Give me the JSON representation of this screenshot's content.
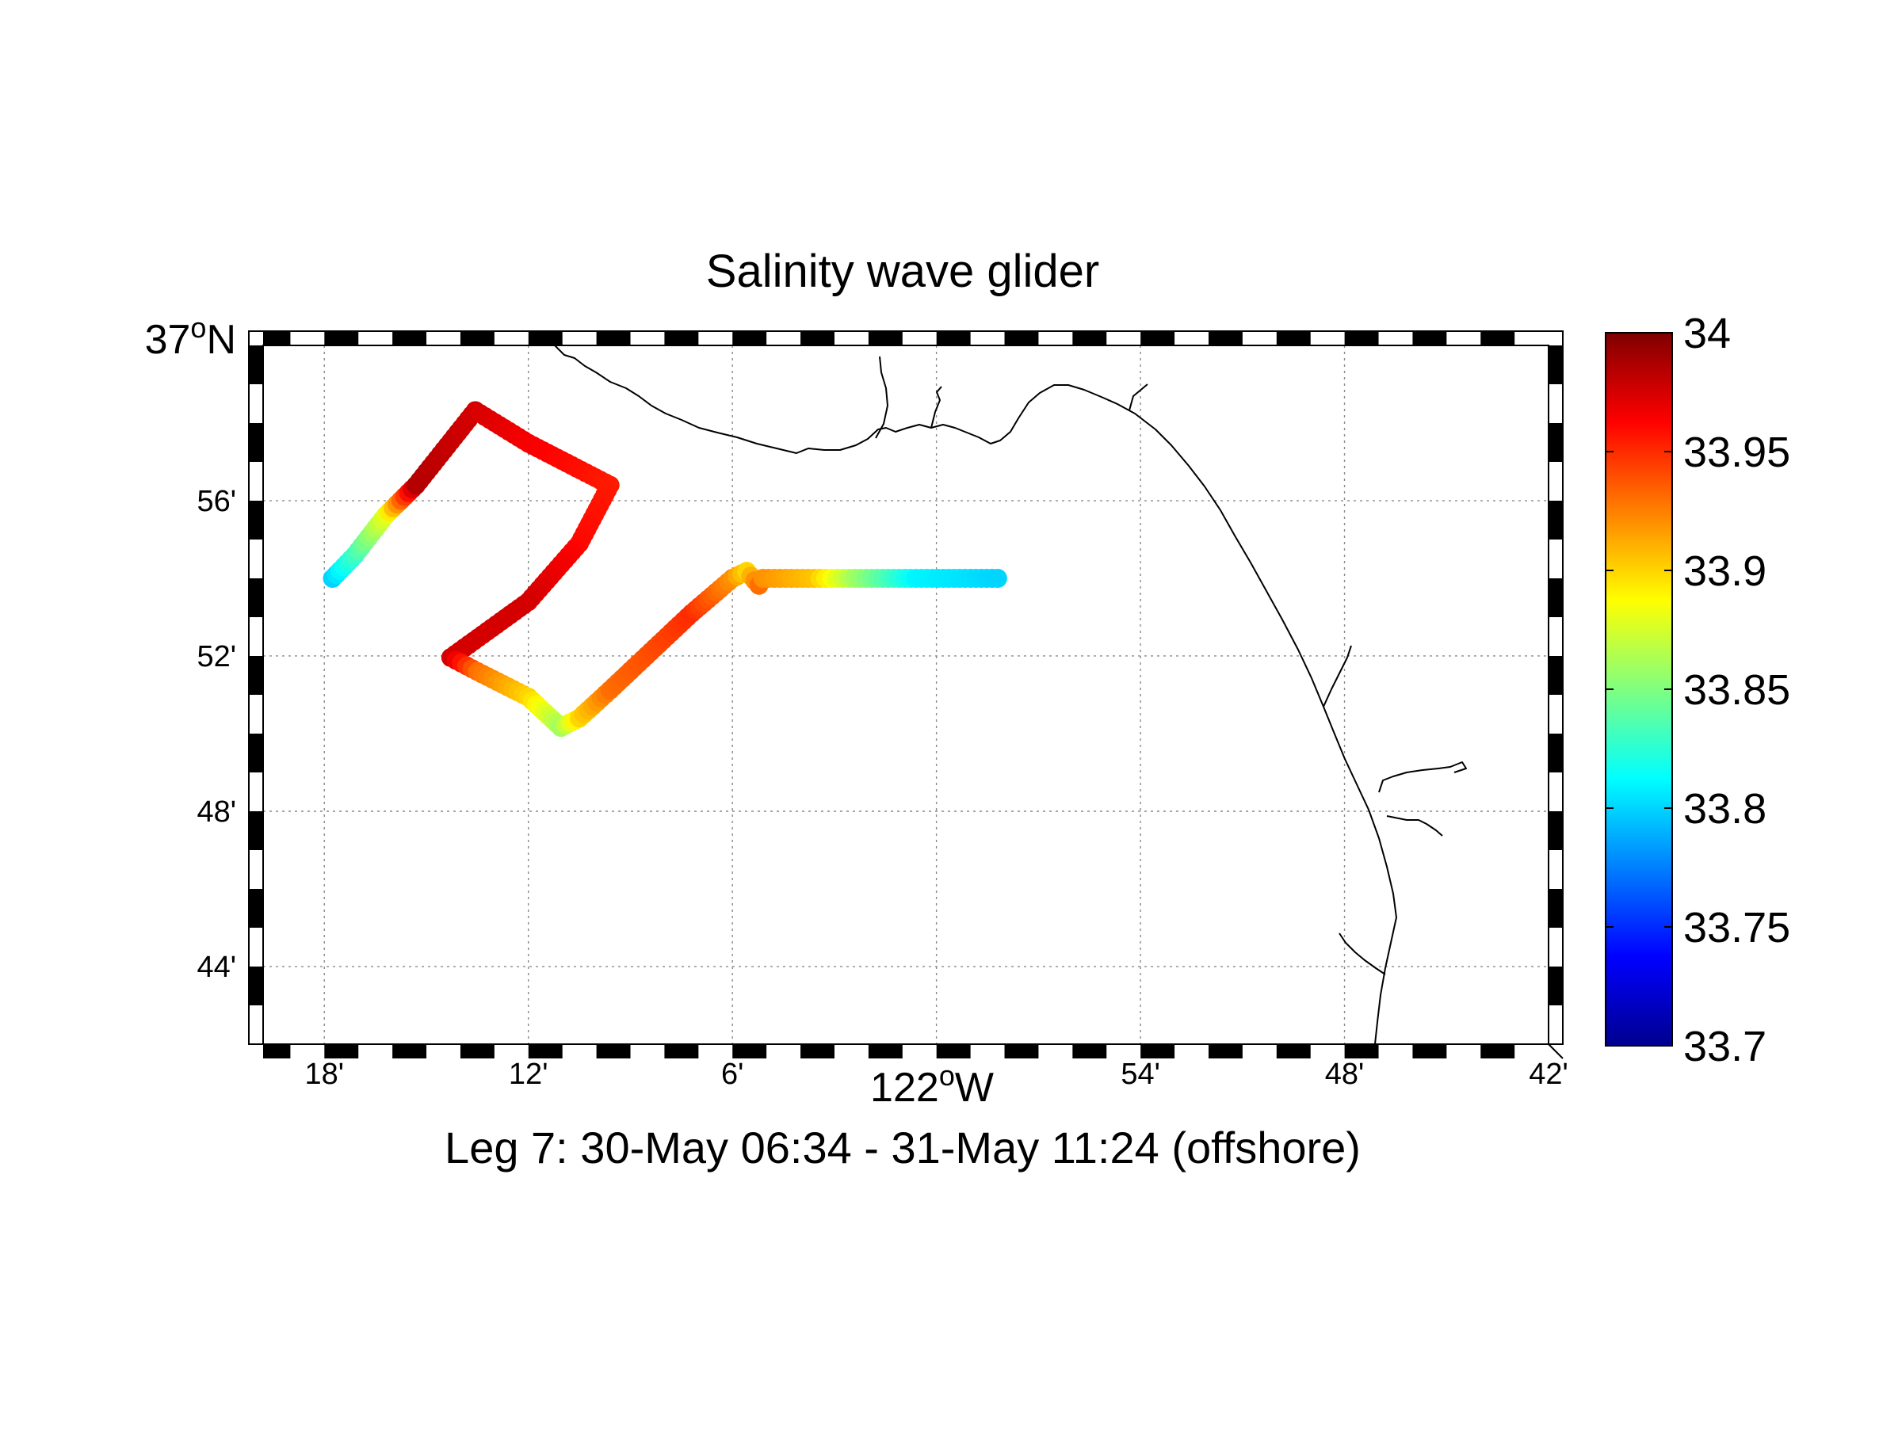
{
  "title": "Salinity wave glider",
  "caption": "Leg 7: 30-May 06:34 - 31-May 11:24 (offshore)",
  "x_axis": {
    "ticks": [
      {
        "lon": -122.3,
        "label": "18'"
      },
      {
        "lon": -122.2,
        "label": "12'"
      },
      {
        "lon": -122.1,
        "label": "6'"
      },
      {
        "lon": -121.9,
        "label": "54'"
      },
      {
        "lon": -121.8,
        "label": "48'"
      },
      {
        "lon": -121.7,
        "label": "42'"
      }
    ],
    "degree_label": {
      "lon": -122.0,
      "deg": "122",
      "sup": "o",
      "hemi": "W"
    },
    "range": [
      -122.33,
      -121.7
    ]
  },
  "y_axis": {
    "ticks": [
      {
        "lat": 36.9333,
        "label": "56'"
      },
      {
        "lat": 36.8667,
        "label": "52'"
      },
      {
        "lat": 36.8,
        "label": "48'"
      },
      {
        "lat": 36.7333,
        "label": "44'"
      }
    ],
    "degree_label": {
      "lat": 37.0,
      "deg": "37",
      "sup": "o",
      "hemi": "N"
    },
    "range": [
      36.7,
      37.0
    ]
  },
  "colorbar": {
    "min": 33.7,
    "max": 34.0,
    "ticks": [
      "34",
      "33.95",
      "33.9",
      "33.85",
      "33.8",
      "33.75",
      "33.7"
    ],
    "colormap": "jet"
  },
  "chart_data": {
    "type": "scatter",
    "title": "Salinity wave glider",
    "xlabel": "122°W",
    "ylabel": "37°N",
    "xlim": [
      -122.33,
      -121.7
    ],
    "ylim": [
      36.7,
      37.0
    ],
    "grid": true,
    "colorbar": {
      "min": 33.7,
      "max": 34.0
    },
    "track_vertices": [
      {
        "lon": -122.296,
        "lat": 36.9,
        "salinity": 33.8
      },
      {
        "lon": -122.285,
        "lat": 36.91,
        "salinity": 33.83
      },
      {
        "lon": -122.27,
        "lat": 36.927,
        "salinity": 33.88
      },
      {
        "lon": -122.255,
        "lat": 36.94,
        "salinity": 33.985
      },
      {
        "lon": -122.226,
        "lat": 36.972,
        "salinity": 33.975
      },
      {
        "lon": -122.2,
        "lat": 36.958,
        "salinity": 33.965
      },
      {
        "lon": -122.16,
        "lat": 36.94,
        "salinity": 33.955
      },
      {
        "lon": -122.175,
        "lat": 36.915,
        "salinity": 33.96
      },
      {
        "lon": -122.2,
        "lat": 36.89,
        "salinity": 33.975
      },
      {
        "lon": -122.238,
        "lat": 36.866,
        "salinity": 33.975
      },
      {
        "lon": -122.225,
        "lat": 36.86,
        "salinity": 33.93
      },
      {
        "lon": -122.2,
        "lat": 36.849,
        "salinity": 33.9
      },
      {
        "lon": -122.184,
        "lat": 36.836,
        "salinity": 33.86
      },
      {
        "lon": -122.175,
        "lat": 36.84,
        "salinity": 33.9
      },
      {
        "lon": -122.16,
        "lat": 36.852,
        "salinity": 33.93
      },
      {
        "lon": -122.12,
        "lat": 36.885,
        "salinity": 33.95
      },
      {
        "lon": -122.1,
        "lat": 36.9,
        "salinity": 33.92
      },
      {
        "lon": -122.093,
        "lat": 36.903,
        "salinity": 33.9
      },
      {
        "lon": -122.087,
        "lat": 36.897,
        "salinity": 33.93
      },
      {
        "lon": -122.085,
        "lat": 36.9,
        "salinity": 33.92
      },
      {
        "lon": -122.06,
        "lat": 36.9,
        "salinity": 33.905
      },
      {
        "lon": -122.04,
        "lat": 36.9,
        "salinity": 33.86
      },
      {
        "lon": -122.01,
        "lat": 36.9,
        "salinity": 33.81
      },
      {
        "lon": -121.97,
        "lat": 36.9,
        "salinity": 33.8
      }
    ]
  }
}
